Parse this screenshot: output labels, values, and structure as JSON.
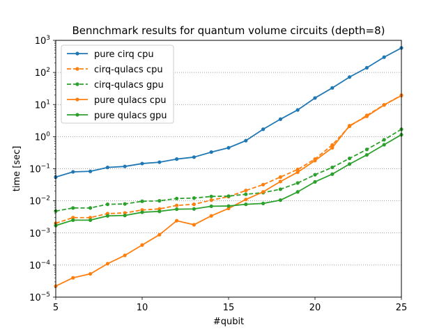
{
  "chart_data": {
    "type": "line",
    "title": "Bennchmark results for quantum volume circuits (depth=8)",
    "xlabel": "#qubit",
    "ylabel": "time [sec]",
    "xlim": [
      5,
      25
    ],
    "ylim": [
      1e-05,
      1000
    ],
    "yscale": "log",
    "grid": "y-major-dotted",
    "legend_position": "top-left",
    "x_ticks": [
      5,
      10,
      15,
      20,
      25
    ],
    "y_ticks": [
      {
        "value": -5,
        "base": "10",
        "exp": "−5"
      },
      {
        "value": -4,
        "base": "10",
        "exp": "−4"
      },
      {
        "value": -3,
        "base": "10",
        "exp": "−3"
      },
      {
        "value": -2,
        "base": "10",
        "exp": "−2"
      },
      {
        "value": -1,
        "base": "10",
        "exp": "−1"
      },
      {
        "value": 0,
        "base": "10",
        "exp": "0"
      },
      {
        "value": 1,
        "base": "10",
        "exp": "1"
      },
      {
        "value": 2,
        "base": "10",
        "exp": "2"
      },
      {
        "value": 3,
        "base": "10",
        "exp": "3"
      }
    ],
    "x": [
      5,
      6,
      7,
      8,
      9,
      10,
      11,
      12,
      13,
      14,
      15,
      16,
      17,
      18,
      19,
      20,
      21,
      22,
      23,
      24,
      25
    ],
    "series": [
      {
        "name": "pure cirq cpu",
        "color": "#1f77b4",
        "dash": "solid",
        "values": [
          0.055,
          0.08,
          0.083,
          0.11,
          0.118,
          0.145,
          0.16,
          0.2,
          0.23,
          0.33,
          0.45,
          0.75,
          1.7,
          3.5,
          6.8,
          16,
          33,
          72,
          140,
          300,
          580
        ]
      },
      {
        "name": "cirq-qulacs cpu",
        "color": "#ff7f0e",
        "dash": "dashed",
        "values": [
          0.002,
          0.003,
          0.003,
          0.004,
          0.0042,
          0.0052,
          0.0056,
          0.0072,
          0.0078,
          0.0105,
          0.0135,
          0.021,
          0.032,
          0.055,
          0.095,
          0.2,
          0.55,
          2.1,
          4.6,
          9.8,
          19.5
        ]
      },
      {
        "name": "cirq-qulacs gpu",
        "color": "#2ca02c",
        "dash": "dashed",
        "values": [
          0.0048,
          0.006,
          0.006,
          0.0078,
          0.008,
          0.0097,
          0.01,
          0.0118,
          0.0122,
          0.0137,
          0.014,
          0.016,
          0.018,
          0.023,
          0.036,
          0.065,
          0.11,
          0.21,
          0.4,
          0.8,
          1.7
        ]
      },
      {
        "name": "pure qulacs cpu",
        "color": "#ff7f0e",
        "dash": "solid",
        "values": [
          2.2e-05,
          4e-05,
          5.3e-05,
          0.00011,
          0.0002,
          0.00042,
          0.00088,
          0.0024,
          0.0018,
          0.0034,
          0.0058,
          0.011,
          0.019,
          0.04,
          0.078,
          0.18,
          0.45,
          2.2,
          4.3,
          9.7,
          19
        ]
      },
      {
        "name": "pure qulacs gpu",
        "color": "#2ca02c",
        "dash": "solid",
        "values": [
          0.0017,
          0.0025,
          0.0025,
          0.0034,
          0.0035,
          0.0044,
          0.0047,
          0.0055,
          0.0056,
          0.0068,
          0.0069,
          0.0078,
          0.0083,
          0.0105,
          0.019,
          0.039,
          0.068,
          0.14,
          0.27,
          0.56,
          1.15
        ]
      }
    ]
  }
}
